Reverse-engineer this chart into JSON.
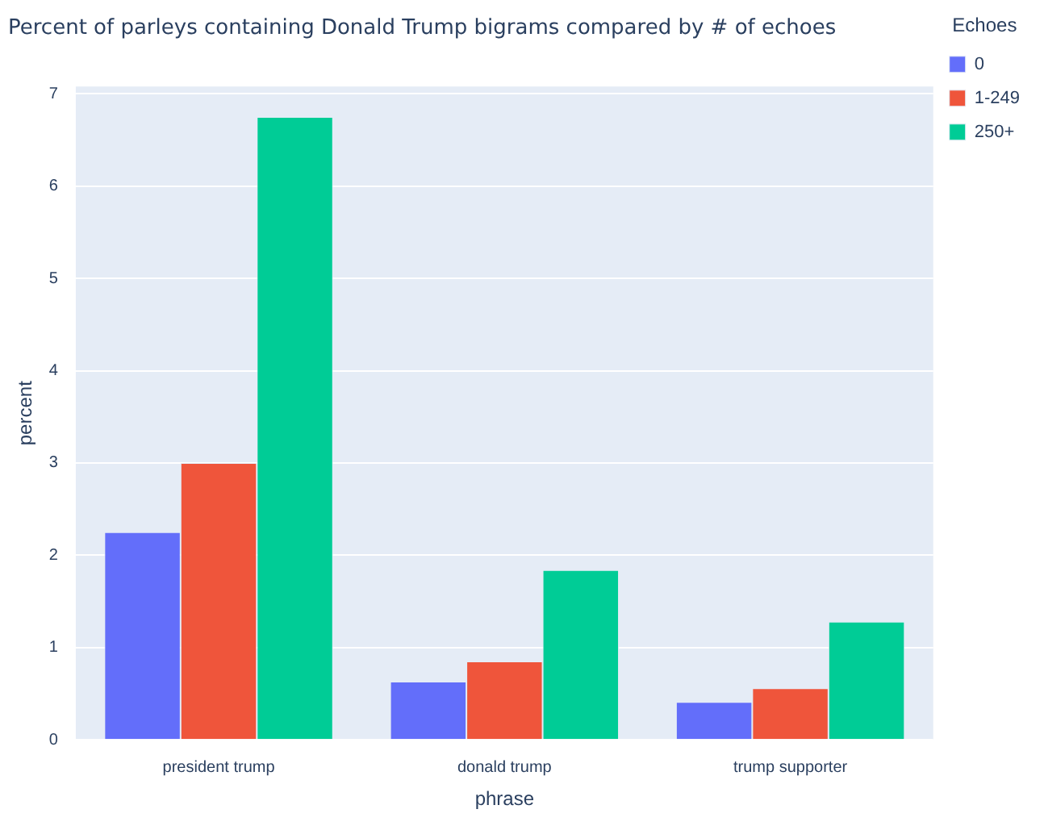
{
  "chart_data": {
    "type": "bar",
    "title": "Percent of parleys containing Donald Trump bigrams compared by # of echoes",
    "xlabel": "phrase",
    "ylabel": "percent",
    "legend_title": "Echoes",
    "categories": [
      "president trump",
      "donald trump",
      "trump supporter"
    ],
    "series": [
      {
        "name": "0",
        "color": "#636efa",
        "values": [
          2.25,
          0.63,
          0.41
        ]
      },
      {
        "name": "1-249",
        "color": "#ef553b",
        "values": [
          3.0,
          0.85,
          0.56
        ]
      },
      {
        "name": "250+",
        "color": "#00cc96",
        "values": [
          6.75,
          1.84,
          1.28
        ]
      }
    ],
    "ylim": [
      0,
      7.08
    ],
    "yticks": [
      0,
      1,
      2,
      3,
      4,
      5,
      6,
      7
    ],
    "grid": "y",
    "legend": "top right"
  }
}
